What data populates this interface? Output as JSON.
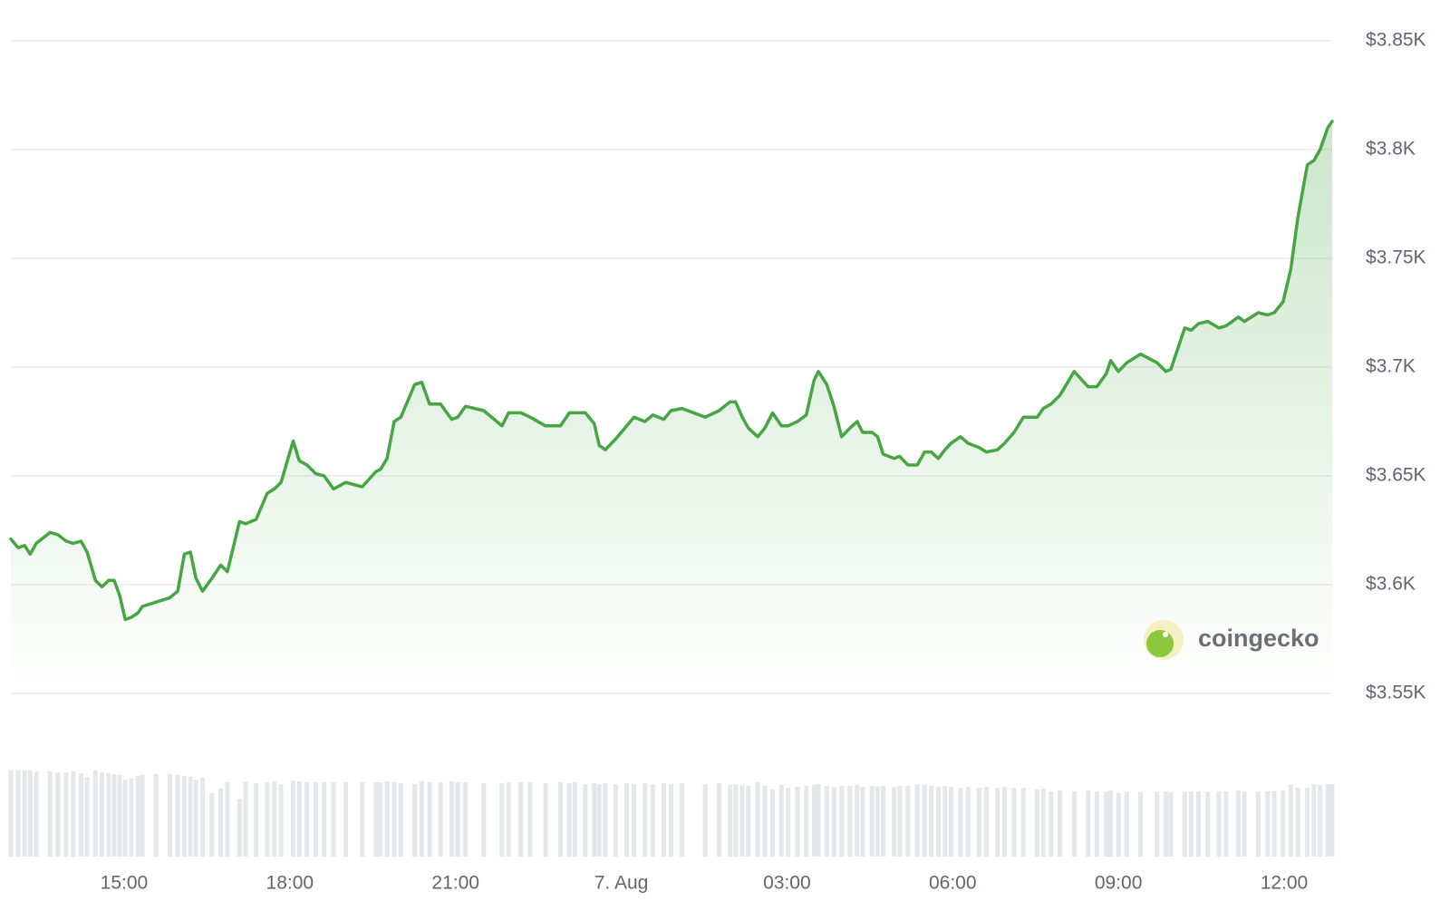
{
  "chart_data": {
    "type": "line",
    "watermark": "coingecko",
    "color": "#47a544",
    "x": [
      12.95,
      13.08,
      13.2,
      13.3,
      13.41,
      13.66,
      13.8,
      13.95,
      14.08,
      14.22,
      14.33,
      14.48,
      14.6,
      14.72,
      14.82,
      14.92,
      15.02,
      15.13,
      15.25,
      15.33,
      15.58,
      15.83,
      15.97,
      16.09,
      16.2,
      16.3,
      16.42,
      16.59,
      16.75,
      16.87,
      17.09,
      17.2,
      17.39,
      17.59,
      17.72,
      17.84,
      18.06,
      18.17,
      18.31,
      18.47,
      18.62,
      18.79,
      19.01,
      19.31,
      19.56,
      19.64,
      19.76,
      19.89,
      20.01,
      20.26,
      20.39,
      20.53,
      20.73,
      20.93,
      21.04,
      21.18,
      21.51,
      21.84,
      21.96,
      22.18,
      22.35,
      22.63,
      22.9,
      23.06,
      23.16,
      23.35,
      23.51,
      23.6,
      23.71,
      23.9,
      24.1,
      24.23,
      24.43,
      24.57,
      24.77,
      24.9,
      25.1,
      25.52,
      25.77,
      25.97,
      26.07,
      26.19,
      26.3,
      26.47,
      26.6,
      26.74,
      26.9,
      27.02,
      27.19,
      27.35,
      27.49,
      27.57,
      27.72,
      27.85,
      27.99,
      28.14,
      28.27,
      28.37,
      28.54,
      28.64,
      28.74,
      28.94,
      29.04,
      29.19,
      29.36,
      29.49,
      29.61,
      29.74,
      29.86,
      29.97,
      30.14,
      30.28,
      30.48,
      30.61,
      30.81,
      30.94,
      31.11,
      31.28,
      31.53,
      31.64,
      31.78,
      31.94,
      32.2,
      32.45,
      32.61,
      32.78,
      32.86,
      33.0,
      33.15,
      33.4,
      33.7,
      33.86,
      33.95,
      34.2,
      34.32,
      34.45,
      34.62,
      34.82,
      34.95,
      35.17,
      35.28,
      35.53,
      35.7,
      35.82,
      35.98,
      36.12,
      36.25,
      36.42,
      36.54,
      36.65,
      36.79,
      36.87
    ],
    "values": [
      3621,
      3617,
      3618,
      3614,
      3619,
      3624,
      3623,
      3620,
      3619,
      3620,
      3615,
      3602,
      3599,
      3602,
      3602,
      3595,
      3584,
      3585,
      3587,
      3590,
      3592,
      3594,
      3597,
      3614,
      3615,
      3603,
      3597,
      3603,
      3609,
      3606,
      3629,
      3628,
      3630,
      3642,
      3644,
      3647,
      3666,
      3657,
      3655,
      3651,
      3650,
      3644,
      3647,
      3645,
      3652,
      3653,
      3658,
      3675,
      3677,
      3692,
      3693,
      3683,
      3683,
      3676,
      3677,
      3682,
      3680,
      3673,
      3679,
      3679,
      3677,
      3673,
      3673,
      3679,
      3679,
      3679,
      3674,
      3664,
      3662,
      3667,
      3673,
      3677,
      3675,
      3678,
      3676,
      3680,
      3681,
      3677,
      3680,
      3684,
      3684,
      3677,
      3672,
      3668,
      3672,
      3679,
      3673,
      3673,
      3675,
      3678,
      3694,
      3698,
      3692,
      3682,
      3668,
      3672,
      3675,
      3670,
      3670,
      3668,
      3660,
      3658,
      3659,
      3655,
      3655,
      3661,
      3661,
      3658,
      3662,
      3665,
      3668,
      3665,
      3663,
      3661,
      3662,
      3665,
      3670,
      3677,
      3677,
      3681,
      3683,
      3687,
      3698,
      3691,
      3691,
      3697,
      3703,
      3698,
      3702,
      3706,
      3702,
      3698,
      3699,
      3718,
      3717,
      3720,
      3721,
      3718,
      3719,
      3723,
      3721,
      3725,
      3724,
      3725,
      3730,
      3745,
      3769,
      3793,
      3795,
      3800,
      3810,
      3813
    ],
    "volume": {
      "color": "#e6e7ea",
      "axis": "y2",
      "values": [
        95,
        95,
        95,
        95,
        94,
        94,
        93,
        93,
        94,
        92,
        88,
        95,
        93,
        92,
        91,
        90,
        85,
        86,
        89,
        90,
        91,
        91,
        90,
        89,
        88,
        85,
        87,
        70,
        75,
        82,
        64,
        83,
        81,
        82,
        83,
        80,
        84,
        83,
        82,
        82,
        82,
        82,
        82,
        82,
        82,
        82,
        83,
        82,
        81,
        80,
        83,
        82,
        82,
        83,
        82,
        82,
        81,
        81,
        82,
        82,
        82,
        81,
        82,
        81,
        82,
        80,
        81,
        80,
        81,
        80,
        81,
        80,
        81,
        80,
        81,
        80,
        81,
        80,
        81,
        79,
        80,
        79,
        78,
        82,
        78,
        74,
        79,
        76,
        77,
        78,
        79,
        80,
        78,
        77,
        78,
        78,
        79,
        77,
        78,
        77,
        78,
        77,
        78,
        78,
        80,
        79,
        78,
        77,
        78,
        77,
        76,
        77,
        76,
        77,
        76,
        77,
        76,
        76,
        74,
        75,
        72,
        73,
        72,
        73,
        72,
        72,
        73,
        70,
        72,
        71,
        72,
        72,
        71,
        72,
        72,
        72,
        72,
        72,
        72,
        73,
        72,
        72,
        72,
        72,
        73,
        80,
        76,
        76,
        80,
        79,
        80,
        80
      ]
    },
    "xlim": [
      12.95,
      36.87
    ],
    "xticks": [
      {
        "value": 15,
        "label": "15:00"
      },
      {
        "value": 18,
        "label": "18:00"
      },
      {
        "value": 21,
        "label": "21:00"
      },
      {
        "value": 24,
        "label": "7. Aug"
      },
      {
        "value": 27,
        "label": "03:00"
      },
      {
        "value": 30,
        "label": "06:00"
      },
      {
        "value": 33,
        "label": "09:00"
      },
      {
        "value": 36,
        "label": "12:00"
      }
    ],
    "ylim": [
      3550,
      3850
    ],
    "yticks": [
      {
        "value": 3550,
        "label": "$3.55K"
      },
      {
        "value": 3600,
        "label": "$3.6K"
      },
      {
        "value": 3650,
        "label": "$3.65K"
      },
      {
        "value": 3700,
        "label": "$3.7K"
      },
      {
        "value": 3750,
        "label": "$3.75K"
      },
      {
        "value": 3800,
        "label": "$3.8K"
      },
      {
        "value": 3850,
        "label": "$3.85K"
      }
    ],
    "y2lim": [
      0,
      100
    ],
    "grid": true
  }
}
